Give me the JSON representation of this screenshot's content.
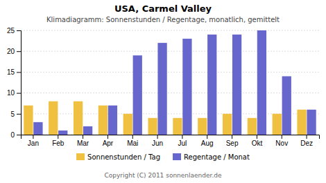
{
  "chart_data": {
    "type": "bar",
    "title": "USA, Carmel Valley",
    "subtitle": "Klimadiagramm: Sonnenstunden / Regentage, monatlich, gemittelt",
    "categories": [
      "Jan",
      "Feb",
      "Mar",
      "Apr",
      "Mai",
      "Jun",
      "Jul",
      "Aug",
      "Sep",
      "Okt",
      "Nov",
      "Dez"
    ],
    "series": [
      {
        "name": "Sonnenstunden / Tag",
        "color": "#f0c040",
        "values": [
          7,
          8,
          8,
          7,
          5,
          4,
          4,
          4,
          5,
          4,
          5,
          6
        ]
      },
      {
        "name": "Regentage / Monat",
        "color": "#6666cc",
        "values": [
          3,
          1,
          2,
          7,
          19,
          22,
          23,
          24,
          24,
          25,
          14,
          6
        ]
      }
    ],
    "ylim": [
      0,
      25
    ],
    "yticks": [
      0,
      5,
      10,
      15,
      20,
      25
    ],
    "grid": true,
    "legend": "bottom",
    "annotations": [
      "Copyright (C) 2011 sonnenlaender.de"
    ]
  }
}
